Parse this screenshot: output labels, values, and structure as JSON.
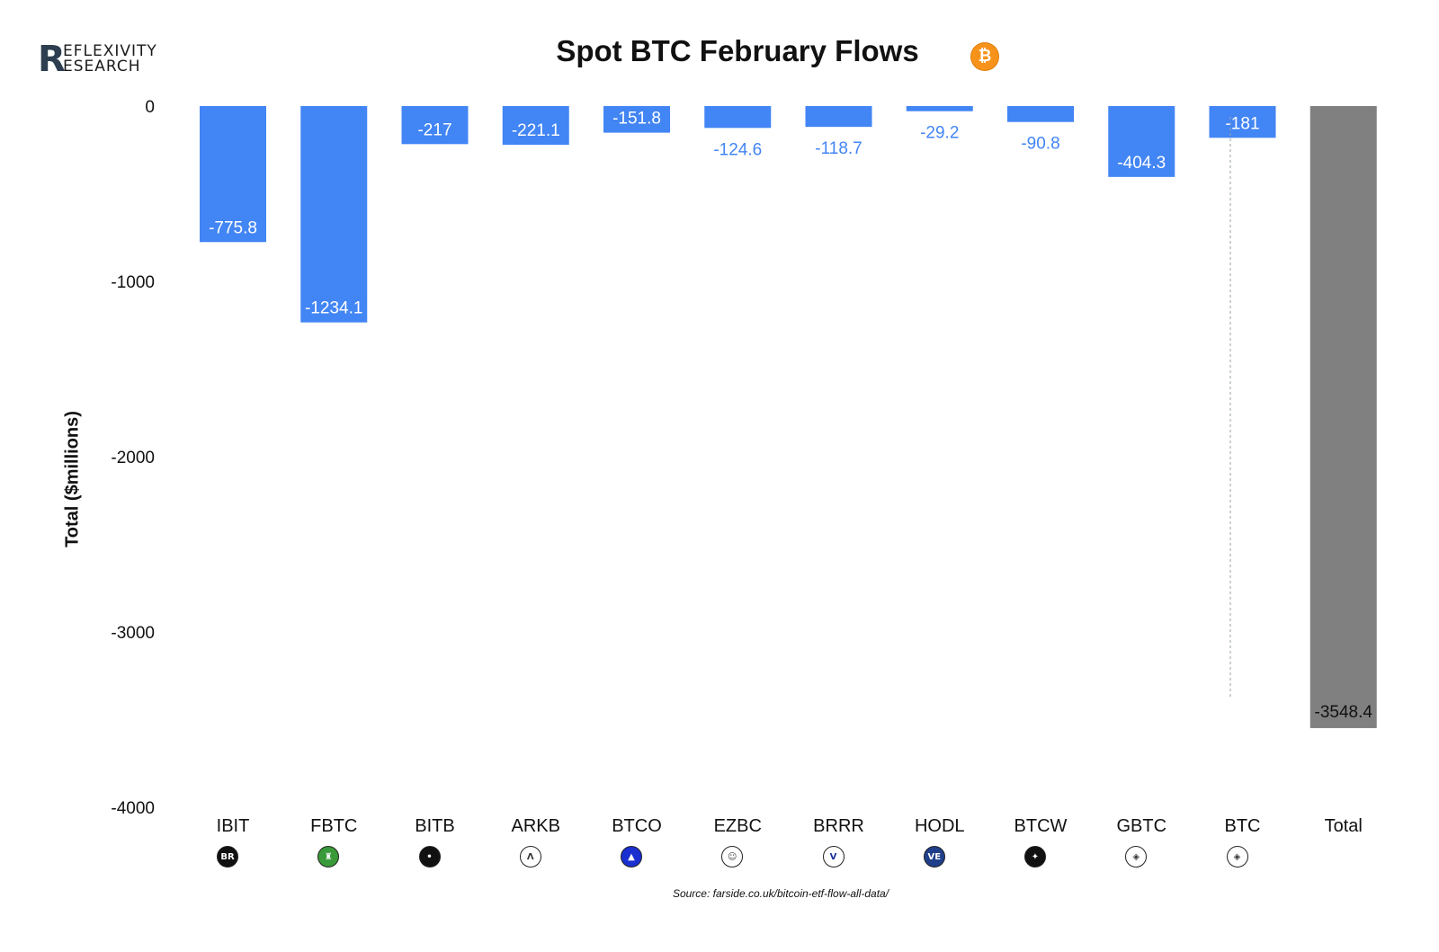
{
  "logo": {
    "letter": "R",
    "line1": "EFLEXIVITY",
    "line2": "ESEARCH"
  },
  "title": "Spot BTC February Flows",
  "btc_badge": "₿",
  "source": "Source: farside.co.uk/bitcoin-etf-flow-all-data/",
  "colors": {
    "bar": "#4285f4",
    "total_bar": "#808080",
    "label_inside": "#ffffff",
    "label_outside": "#4285f4",
    "total_label": "#111111"
  },
  "icons": [
    {
      "ticker": "IBIT",
      "name": "blackrock-icon",
      "text": "BR",
      "bg": "#111111",
      "fg": "#ffffff"
    },
    {
      "ticker": "FBTC",
      "name": "fidelity-icon",
      "text": "♜",
      "bg": "#3a9a3a",
      "fg": "#ffffff"
    },
    {
      "ticker": "BITB",
      "name": "bitwise-icon",
      "text": "•",
      "bg": "#111111",
      "fg": "#ffffff"
    },
    {
      "ticker": "ARKB",
      "name": "ark-icon",
      "text": "Λ",
      "bg": "#ffffff",
      "fg": "#333333"
    },
    {
      "ticker": "BTCO",
      "name": "invesco-icon",
      "text": "▲",
      "bg": "#1a2fd0",
      "fg": "#ffffff"
    },
    {
      "ticker": "EZBC",
      "name": "franklin-icon",
      "text": "☺",
      "bg": "#ffffff",
      "fg": "#444444"
    },
    {
      "ticker": "BRRR",
      "name": "valkyrie-icon",
      "text": "V",
      "bg": "#ffffff",
      "fg": "#1a2fa0"
    },
    {
      "ticker": "HODL",
      "name": "vaneck-icon",
      "text": "VE",
      "bg": "#1f3f8a",
      "fg": "#ffffff"
    },
    {
      "ticker": "BTCW",
      "name": "wisdomtree-icon",
      "text": "✦",
      "bg": "#111111",
      "fg": "#ffffff"
    },
    {
      "ticker": "GBTC",
      "name": "grayscale-icon",
      "text": "◈",
      "bg": "#ffffff",
      "fg": "#333333"
    },
    {
      "ticker": "BTC",
      "name": "grayscale-mini-icon",
      "text": "◈",
      "bg": "#ffffff",
      "fg": "#333333"
    }
  ],
  "chart_data": {
    "type": "bar",
    "title": "Spot BTC February Flows",
    "xlabel": "",
    "ylabel": "Total ($millions)",
    "ylim": [
      -4000,
      0
    ],
    "yticks": [
      0,
      -1000,
      -2000,
      -3000,
      -4000
    ],
    "grid": false,
    "categories": [
      "IBIT",
      "FBTC",
      "BITB",
      "ARKB",
      "BTCO",
      "EZBC",
      "BRRR",
      "HODL",
      "BTCW",
      "GBTC",
      "BTC",
      "Total"
    ],
    "values": [
      -775.8,
      -1234.1,
      -217,
      -221.1,
      -151.8,
      -124.6,
      -118.7,
      -29.2,
      -90.8,
      -404.3,
      -181,
      -3548.4
    ],
    "labels": [
      "-775.8",
      "-1234.1",
      "-217",
      "-221.1",
      "-151.8",
      "-124.6",
      "-118.7",
      "-29.2",
      "-90.8",
      "-404.3",
      "-181",
      "-3548.4"
    ],
    "total_category": "Total"
  }
}
